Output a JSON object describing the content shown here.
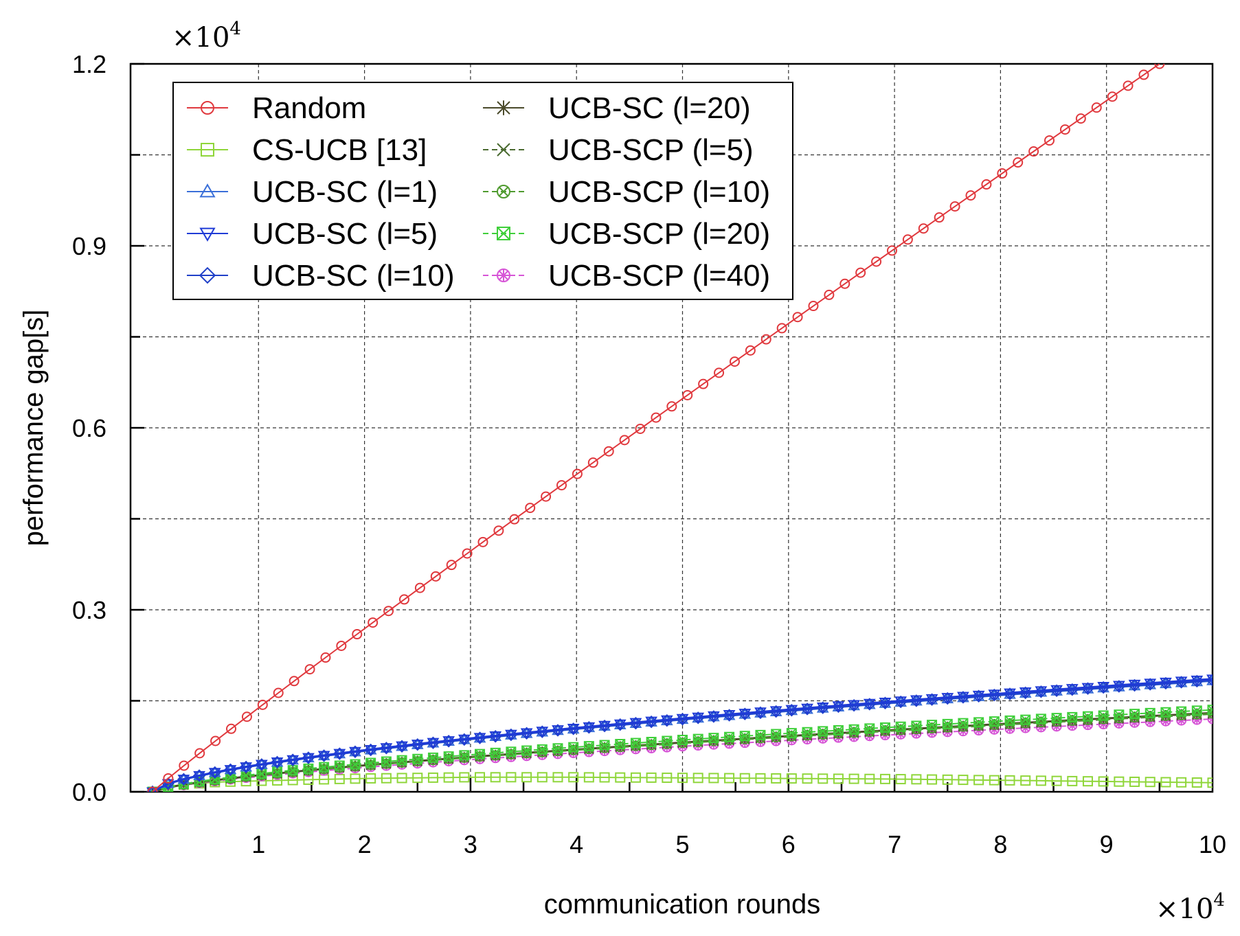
{
  "chart_data": {
    "type": "line",
    "title": "",
    "xlabel": "communication rounds",
    "ylabel": "performance gap[s]",
    "x_multiplier": {
      "base": "×10",
      "exp": "4"
    },
    "y_multiplier": {
      "base": "×10",
      "exp": "4"
    },
    "xlim": [
      0,
      10
    ],
    "ylim": [
      0,
      1.2
    ],
    "x_ticks": [
      1,
      2,
      3,
      4,
      5,
      6,
      7,
      8,
      9,
      10
    ],
    "x_tick_labels": [
      "1",
      "2",
      "3",
      "4",
      "5",
      "6",
      "7",
      "8",
      "9",
      "10"
    ],
    "y_ticks": [
      0,
      0.3,
      0.6,
      0.9,
      1.2
    ],
    "y_tick_labels": [
      "0.0",
      "0.3",
      "0.6",
      "0.9",
      "1.2"
    ],
    "grid": true,
    "legend_position": "top-left",
    "legend": [
      {
        "id": "random",
        "label": "Random",
        "color": "#e0393e",
        "marker": "circle",
        "dash": false
      },
      {
        "id": "cs-ucb",
        "label": "CS-UCB [13]",
        "color": "#8fd63a",
        "marker": "square",
        "dash": false
      },
      {
        "id": "ucb-sc-1",
        "label": "UCB-SC (l=1)",
        "color": "#3a6fd8",
        "marker": "triangle-up",
        "dash": false
      },
      {
        "id": "ucb-sc-5",
        "label": "UCB-SC (l=5)",
        "color": "#1f3bd6",
        "marker": "triangle-down",
        "dash": false
      },
      {
        "id": "ucb-sc-10",
        "label": "UCB-SC (l=10)",
        "color": "#2040c8",
        "marker": "diamond",
        "dash": false
      },
      {
        "id": "ucb-sc-20",
        "label": "UCB-SC (l=20)",
        "color": "#4a4a2a",
        "marker": "asterisk",
        "dash": false
      },
      {
        "id": "ucb-scp-5",
        "label": "UCB-SCP (l=5)",
        "color": "#4a6a30",
        "marker": "x",
        "dash": true
      },
      {
        "id": "ucb-scp-10",
        "label": "UCB-SCP (l=10)",
        "color": "#4e9a2e",
        "marker": "circle-x",
        "dash": true
      },
      {
        "id": "ucb-scp-20",
        "label": "UCB-SCP (l=20)",
        "color": "#3fcf3a",
        "marker": "square-x",
        "dash": true
      },
      {
        "id": "ucb-scp-40",
        "label": "UCB-SCP (l=40)",
        "color": "#d654d6",
        "marker": "circle-star",
        "dash": true
      }
    ],
    "series": [
      {
        "id": "random",
        "name": "Random",
        "curve": "power",
        "end_x": 9.5,
        "end_y": 1.2,
        "exponent": 0.96
      },
      {
        "id": "cs-ucb",
        "name": "CS-UCB [13]",
        "curve": "points",
        "points": [
          [
            0,
            0
          ],
          [
            0.3,
            0.012
          ],
          [
            0.6,
            0.016
          ],
          [
            1,
            0.018
          ],
          [
            2,
            0.022
          ],
          [
            3,
            0.024
          ],
          [
            4,
            0.024
          ],
          [
            5,
            0.023
          ],
          [
            6,
            0.022
          ],
          [
            7,
            0.021
          ],
          [
            8,
            0.019
          ],
          [
            9,
            0.017
          ],
          [
            10,
            0.015
          ]
        ]
      },
      {
        "id": "ucb-sc-1",
        "name": "UCB-SC (l=1)",
        "curve": "power",
        "end_x": 10,
        "end_y": 0.183,
        "exponent": 0.62
      },
      {
        "id": "ucb-sc-5",
        "name": "UCB-SC (l=5)",
        "curve": "power",
        "end_x": 10,
        "end_y": 0.186,
        "exponent": 0.62
      },
      {
        "id": "ucb-sc-10",
        "name": "UCB-SC (l=10)",
        "curve": "power",
        "end_x": 10,
        "end_y": 0.184,
        "exponent": 0.62
      },
      {
        "id": "ucb-sc-20",
        "name": "UCB-SC (l=20)",
        "curve": "power",
        "end_x": 10,
        "end_y": 0.13,
        "exponent": 0.68
      },
      {
        "id": "ucb-scp-5",
        "name": "UCB-SCP (l=5)",
        "curve": "power",
        "end_x": 10,
        "end_y": 0.128,
        "exponent": 0.68
      },
      {
        "id": "ucb-scp-10",
        "name": "UCB-SCP (l=10)",
        "curve": "power",
        "end_x": 10,
        "end_y": 0.129,
        "exponent": 0.68
      },
      {
        "id": "ucb-scp-20",
        "name": "UCB-SCP (l=20)",
        "curve": "power",
        "end_x": 10,
        "end_y": 0.135,
        "exponent": 0.66
      },
      {
        "id": "ucb-scp-40",
        "name": "UCB-SCP (l=40)",
        "curve": "power",
        "end_x": 10,
        "end_y": 0.12,
        "exponent": 0.68
      }
    ]
  }
}
